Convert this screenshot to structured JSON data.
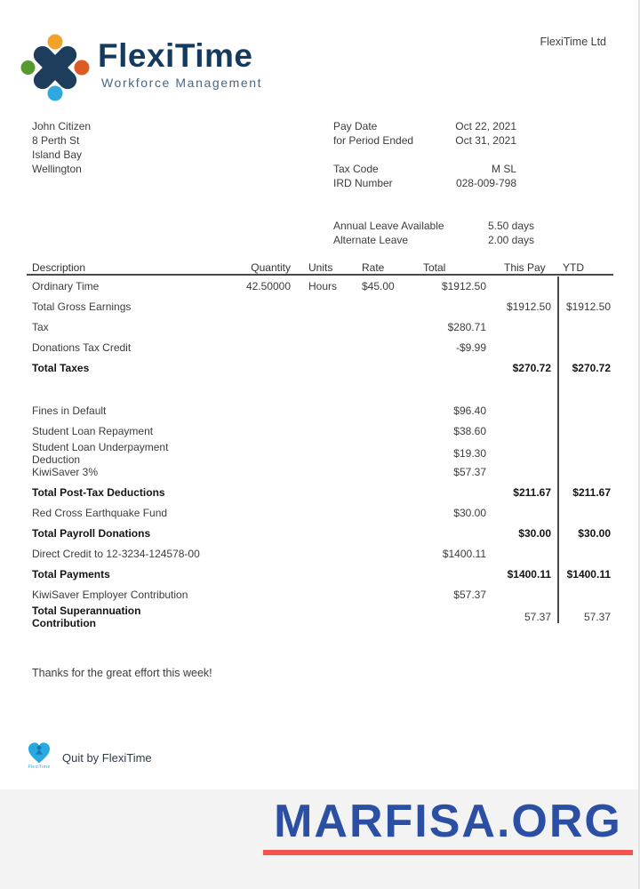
{
  "company": {
    "name": "FlexiTime",
    "tagline": "Workforce Management",
    "header_right": "FlexiTime Ltd"
  },
  "employee": {
    "name": "John Citizen",
    "address_line1": "8 Perth St",
    "address_line2": "Island Bay",
    "address_line3": "Wellington"
  },
  "pay_dates": [
    {
      "label": "Pay Date",
      "value": "Oct 22, 2021"
    },
    {
      "label": "for Period Ended",
      "value": "Oct 31, 2021"
    }
  ],
  "tax_info": [
    {
      "label": "Tax Code",
      "value": "M SL"
    },
    {
      "label": "IRD Number",
      "value": "028-009-798"
    }
  ],
  "leave_info": [
    {
      "label": "Annual Leave Available",
      "value": "5.50 days"
    },
    {
      "label": "Alternate Leave",
      "value": "2.00  days"
    }
  ],
  "table": {
    "headers": {
      "description": "Description",
      "quantity": "Quantity",
      "units": "Units",
      "rate": "Rate",
      "total": "Total",
      "this_pay": "This Pay",
      "ytd": "YTD"
    },
    "rows": [
      {
        "desc": "Ordinary Time",
        "quantity": "42.50000",
        "units": "Hours",
        "rate": "$45.00",
        "total": "$1912.50",
        "this_pay": "",
        "ytd": ""
      },
      {
        "desc": "Total Gross Earnings",
        "quantity": "",
        "units": "",
        "rate": "",
        "total": "",
        "this_pay": "$1912.50",
        "ytd": "$1912.50"
      },
      {
        "desc": "Tax",
        "quantity": "",
        "units": "",
        "rate": "",
        "total": "$280.71",
        "this_pay": "",
        "ytd": ""
      },
      {
        "desc": "Donations Tax Credit",
        "quantity": "",
        "units": "",
        "rate": "",
        "total": "-$9.99",
        "this_pay": "",
        "ytd": ""
      },
      {
        "desc": "Total Taxes",
        "bold": true,
        "quantity": "",
        "units": "",
        "rate": "",
        "total": "",
        "this_pay": "$270.72",
        "ytd": "$270.72"
      },
      {
        "spacer": true
      },
      {
        "desc": "Fines in Default",
        "quantity": "",
        "units": "",
        "rate": "",
        "total": "$96.40",
        "this_pay": "",
        "ytd": ""
      },
      {
        "desc": "Student Loan Repayment",
        "quantity": "",
        "units": "",
        "rate": "",
        "total": "$38.60",
        "this_pay": "",
        "ytd": ""
      },
      {
        "desc": "Student Loan Underpayment Deduction",
        "quantity": "",
        "units": "",
        "rate": "",
        "total": "$19.30",
        "this_pay": "",
        "ytd": ""
      },
      {
        "desc": "KiwiSaver 3%",
        "quantity": "",
        "units": "",
        "rate": "",
        "total": "$57.37",
        "this_pay": "",
        "ytd": ""
      },
      {
        "desc": "Total Post-Tax Deductions",
        "bold": true,
        "quantity": "",
        "units": "",
        "rate": "",
        "total": "",
        "this_pay": "$211.67",
        "ytd": "$211.67"
      },
      {
        "desc": "Red Cross Earthquake Fund",
        "quantity": "",
        "units": "",
        "rate": "",
        "total": "$30.00",
        "this_pay": "",
        "ytd": ""
      },
      {
        "desc": "Total Payroll Donations",
        "bold": true,
        "quantity": "",
        "units": "",
        "rate": "",
        "total": "",
        "this_pay": "$30.00",
        "ytd": "$30.00"
      },
      {
        "desc": "Direct Credit to 12-3234-124578-00",
        "quantity": "",
        "units": "",
        "rate": "",
        "total": "$1400.11",
        "this_pay": "",
        "ytd": ""
      },
      {
        "desc": "Total Payments",
        "bold": true,
        "quantity": "",
        "units": "",
        "rate": "",
        "total": "",
        "this_pay": "$1400.11",
        "ytd": "$1400.11"
      },
      {
        "desc": "KiwiSaver Employer Contribution",
        "quantity": "",
        "units": "",
        "rate": "",
        "total": "$57.37",
        "this_pay": "",
        "ytd": ""
      },
      {
        "desc": "Total Superannuation Contribution",
        "bold": true,
        "values_regular": true,
        "quantity": "",
        "units": "",
        "rate": "",
        "total": "",
        "this_pay": "57.37",
        "ytd": "57.37"
      }
    ]
  },
  "footer": {
    "thanks": "Thanks for the great effort this week!",
    "built_by": "Quit by FlexiTime",
    "mini_logo_text": "FlexiTime"
  },
  "watermark": {
    "text": "MARFISA.ORG"
  },
  "colors": {
    "brand_navy": "#16395e",
    "tagline_blue": "#45688b",
    "dot_orange": "#f0a22b",
    "dot_green": "#55992f",
    "dot_red": "#dc5a24",
    "dot_blue": "#2fa8e0",
    "watermark_blue": "#2b4fa2",
    "watermark_red": "#f4534f"
  }
}
